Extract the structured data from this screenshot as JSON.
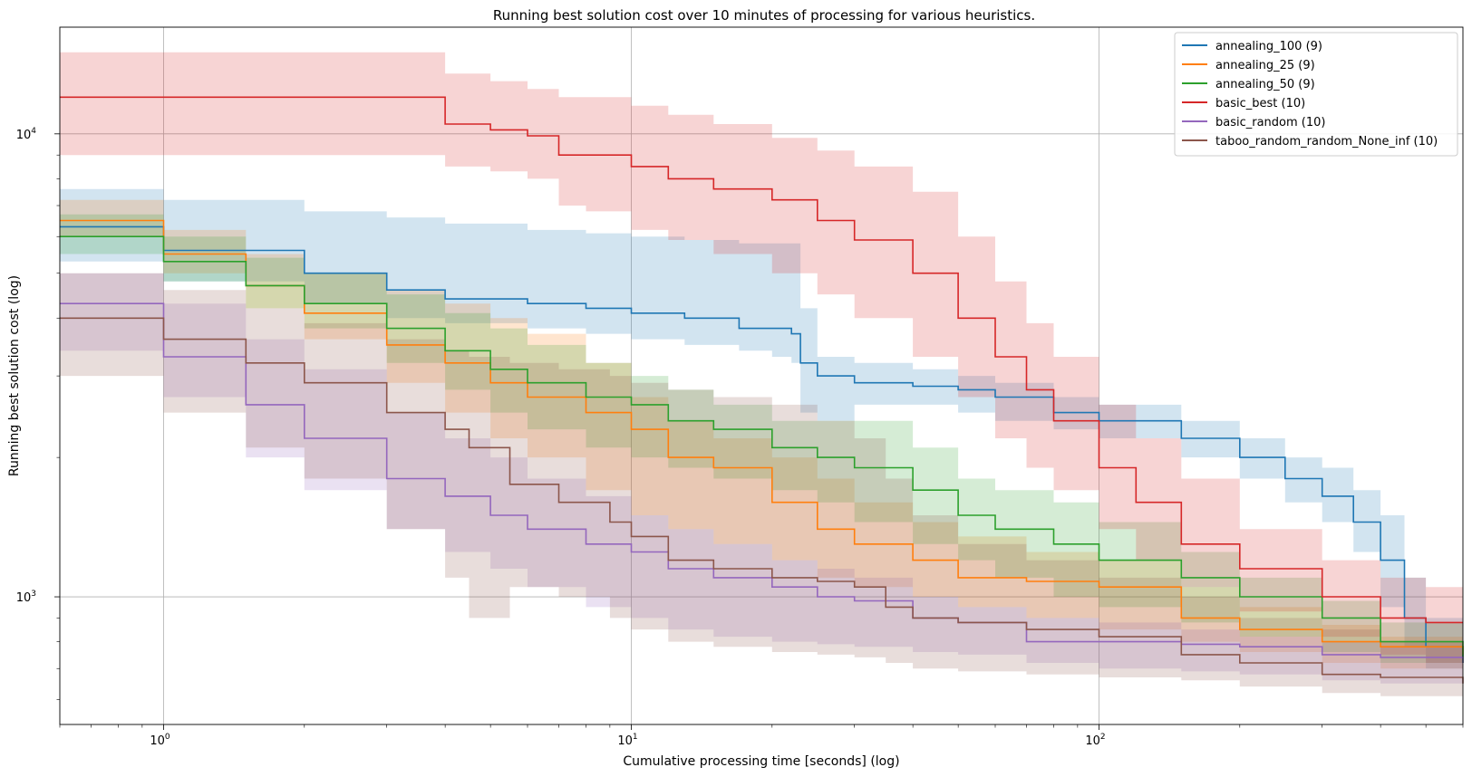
{
  "chart_data": {
    "type": "line",
    "title": "Running best solution cost over 10 minutes of processing for various heuristics.",
    "xlabel": "Cumulative processing time [seconds] (log)",
    "ylabel": "Running best solution cost (log)",
    "xscale": "log",
    "yscale": "log",
    "xlim": [
      0.6,
      600
    ],
    "ylim": [
      530,
      17000
    ],
    "grid": true,
    "legend_position": "top-right",
    "x_ticks": [
      {
        "value": 1,
        "base": "10",
        "exp": "0"
      },
      {
        "value": 10,
        "base": "10",
        "exp": "1"
      },
      {
        "value": 100,
        "base": "10",
        "exp": "2"
      }
    ],
    "y_ticks": [
      {
        "value": 1000,
        "base": "10",
        "exp": "3"
      },
      {
        "value": 10000,
        "base": "10",
        "exp": "4"
      }
    ],
    "series": [
      {
        "name": "annealing_100 (9)",
        "color": "#1f77b4",
        "x": [
          0.6,
          1,
          2,
          3,
          4,
          6,
          8,
          10,
          13,
          17,
          20,
          22,
          23,
          25,
          30,
          40,
          50,
          60,
          80,
          100,
          150,
          200,
          250,
          300,
          350,
          400,
          450,
          500,
          600
        ],
        "y": [
          6300,
          5600,
          5000,
          4600,
          4400,
          4300,
          4200,
          4100,
          4000,
          3800,
          3800,
          3700,
          3200,
          3000,
          2900,
          2850,
          2800,
          2700,
          2500,
          2400,
          2200,
          2000,
          1800,
          1650,
          1450,
          1200,
          900,
          780,
          720
        ],
        "lower": [
          5300,
          4800,
          4300,
          4000,
          3900,
          3800,
          3700,
          3600,
          3500,
          3400,
          3300,
          3200,
          2500,
          2400,
          2600,
          2600,
          2500,
          2400,
          2300,
          2200,
          2000,
          1800,
          1600,
          1450,
          1250,
          950,
          780,
          700,
          660
        ],
        "upper": [
          7600,
          7200,
          6800,
          6600,
          6400,
          6200,
          6100,
          6000,
          5900,
          5800,
          5800,
          5800,
          4200,
          3300,
          3200,
          3100,
          3000,
          2900,
          2700,
          2600,
          2400,
          2200,
          2000,
          1900,
          1700,
          1500,
          1100,
          900,
          780
        ]
      },
      {
        "name": "annealing_25 (9)",
        "color": "#ff7f0e",
        "x": [
          0.6,
          1,
          1.5,
          2,
          3,
          4,
          5,
          6,
          8,
          10,
          12,
          15,
          20,
          25,
          30,
          40,
          50,
          70,
          100,
          150,
          200,
          300,
          400,
          600
        ],
        "y": [
          6500,
          5500,
          4700,
          4100,
          3500,
          3200,
          2900,
          2700,
          2500,
          2300,
          2000,
          1900,
          1600,
          1400,
          1300,
          1200,
          1100,
          1080,
          1050,
          900,
          850,
          800,
          780,
          750
        ],
        "lower": [
          6000,
          5000,
          4200,
          3600,
          2900,
          2500,
          2200,
          2000,
          1700,
          1500,
          1400,
          1300,
          1200,
          1100,
          1050,
          1000,
          950,
          900,
          850,
          800,
          760,
          720,
          700,
          680
        ],
        "upper": [
          7200,
          6200,
          5500,
          5000,
          4600,
          4300,
          4000,
          3700,
          3200,
          2700,
          2400,
          2200,
          2000,
          1800,
          1600,
          1450,
          1350,
          1250,
          1200,
          1050,
          950,
          870,
          820,
          800
        ]
      },
      {
        "name": "annealing_50 (9)",
        "color": "#2ca02c",
        "x": [
          0.6,
          1,
          1.5,
          2,
          3,
          4,
          5,
          6,
          8,
          10,
          12,
          15,
          20,
          25,
          30,
          40,
          50,
          60,
          80,
          100,
          150,
          200,
          300,
          400,
          600
        ],
        "y": [
          6000,
          5300,
          4700,
          4300,
          3800,
          3400,
          3100,
          2900,
          2700,
          2600,
          2400,
          2300,
          2100,
          2000,
          1900,
          1700,
          1500,
          1400,
          1300,
          1200,
          1100,
          1000,
          900,
          800,
          720
        ],
        "lower": [
          5500,
          4800,
          4200,
          3800,
          3200,
          2800,
          2500,
          2300,
          2100,
          2000,
          1900,
          1800,
          1700,
          1600,
          1450,
          1300,
          1200,
          1100,
          1000,
          950,
          880,
          820,
          760,
          720,
          680
        ],
        "upper": [
          6700,
          6000,
          5400,
          5000,
          4500,
          4100,
          3800,
          3500,
          3200,
          3000,
          2800,
          2600,
          2400,
          2400,
          2400,
          2100,
          1800,
          1700,
          1600,
          1450,
          1250,
          1100,
          980,
          880,
          780
        ]
      },
      {
        "name": "basic_best (10)",
        "color": "#d62728",
        "x": [
          0.6,
          1,
          2,
          3,
          4,
          5,
          6,
          7,
          8,
          10,
          12,
          15,
          20,
          25,
          30,
          40,
          50,
          60,
          70,
          80,
          100,
          120,
          150,
          200,
          300,
          400,
          500,
          600
        ],
        "y": [
          12000,
          12000,
          12000,
          12000,
          10500,
          10200,
          9900,
          9000,
          9000,
          8500,
          8000,
          7600,
          7200,
          6500,
          5900,
          5000,
          4000,
          3300,
          2800,
          2400,
          1900,
          1600,
          1300,
          1150,
          1000,
          900,
          880,
          880
        ],
        "lower": [
          9000,
          9000,
          9000,
          9000,
          8500,
          8300,
          8000,
          7000,
          6800,
          6200,
          5900,
          5500,
          5000,
          4500,
          4000,
          3300,
          2700,
          2200,
          1900,
          1700,
          1400,
          1200,
          1050,
          930,
          820,
          750,
          720,
          700
        ],
        "upper": [
          15000,
          15000,
          15000,
          15000,
          13500,
          13000,
          12500,
          12000,
          12000,
          11500,
          11000,
          10500,
          9800,
          9200,
          8500,
          7500,
          6000,
          4800,
          3900,
          3300,
          2600,
          2200,
          1800,
          1400,
          1200,
          1100,
          1050,
          1000
        ]
      },
      {
        "name": "basic_random (10)",
        "color": "#9467bd",
        "x": [
          0.6,
          1,
          1.5,
          2,
          3,
          4,
          5,
          6,
          8,
          10,
          12,
          15,
          20,
          25,
          30,
          40,
          50,
          70,
          100,
          150,
          200,
          300,
          400,
          600
        ],
        "y": [
          4300,
          3300,
          2600,
          2200,
          1800,
          1650,
          1500,
          1400,
          1300,
          1250,
          1150,
          1100,
          1050,
          1000,
          980,
          900,
          880,
          800,
          800,
          790,
          780,
          750,
          740,
          720
        ],
        "lower": [
          3400,
          2700,
          2000,
          1700,
          1400,
          1250,
          1150,
          1050,
          950,
          900,
          850,
          820,
          800,
          790,
          780,
          760,
          750,
          720,
          700,
          690,
          680,
          660,
          650,
          630
        ],
        "upper": [
          5000,
          4300,
          3600,
          3100,
          2500,
          2200,
          2000,
          1800,
          1650,
          1500,
          1400,
          1300,
          1200,
          1150,
          1100,
          1000,
          950,
          900,
          880,
          850,
          820,
          800,
          780,
          760
        ]
      },
      {
        "name": "taboo_random_random_None_inf (10)",
        "color": "#8c564b",
        "x": [
          0.6,
          1,
          1.5,
          2,
          3,
          4,
          4.5,
          5.5,
          7,
          9,
          10,
          12,
          15,
          20,
          25,
          30,
          35,
          40,
          50,
          70,
          100,
          150,
          200,
          300,
          400,
          600
        ],
        "y": [
          4000,
          3600,
          3200,
          2900,
          2500,
          2300,
          2100,
          1750,
          1600,
          1450,
          1350,
          1200,
          1150,
          1100,
          1080,
          1050,
          950,
          900,
          880,
          850,
          820,
          750,
          720,
          680,
          670,
          650
        ],
        "lower": [
          3000,
          2500,
          2100,
          1800,
          1400,
          1100,
          900,
          1050,
          1000,
          900,
          850,
          800,
          780,
          760,
          750,
          740,
          720,
          700,
          690,
          680,
          670,
          660,
          640,
          620,
          610,
          580
        ],
        "upper": [
          5000,
          4600,
          4200,
          3900,
          3600,
          3400,
          3300,
          3200,
          3100,
          3000,
          2900,
          2800,
          2700,
          2600,
          2400,
          2200,
          1800,
          1500,
          1300,
          1200,
          1100,
          1000,
          900,
          850,
          800,
          750
        ]
      }
    ]
  }
}
